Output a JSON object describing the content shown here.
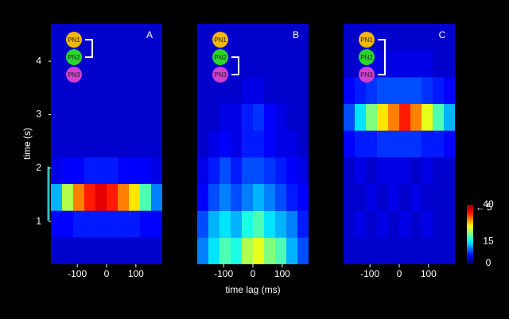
{
  "chart_data": [
    {
      "type": "heatmap",
      "label": "A",
      "nodes": [
        "PN1",
        "PN2",
        "PN3"
      ],
      "ylabel": "time (s)",
      "xlim": [
        -190,
        190
      ],
      "ylim": [
        0.2,
        4.7
      ],
      "xticks": [
        -100,
        0,
        100
      ],
      "yticks": [
        1,
        2,
        3,
        4
      ],
      "clim": [
        0,
        40
      ],
      "colorbar": {
        "ticks": [
          0,
          15,
          40
        ],
        "arrow_label": "5"
      },
      "x": [
        -171,
        -133,
        -95,
        -57,
        -19,
        19,
        57,
        95,
        133,
        171
      ],
      "y": [
        0.45,
        0.95,
        1.45,
        1.95,
        2.45,
        2.95,
        3.45,
        3.95,
        4.45
      ],
      "values": [
        [
          3,
          3,
          3,
          3,
          3,
          3,
          3,
          3,
          3,
          3
        ],
        [
          5,
          5,
          6,
          6,
          6,
          6,
          6,
          6,
          5,
          5
        ],
        [
          12,
          22,
          30,
          34,
          36,
          34,
          30,
          26,
          18,
          10
        ],
        [
          4,
          5,
          5,
          6,
          6,
          6,
          5,
          5,
          5,
          4
        ],
        [
          3,
          3,
          3,
          3,
          3,
          3,
          3,
          3,
          3,
          3
        ],
        [
          3,
          3,
          3,
          3,
          3,
          3,
          3,
          3,
          3,
          3
        ],
        [
          3,
          3,
          3,
          3,
          3,
          3,
          3,
          3,
          3,
          3
        ],
        [
          3,
          3,
          3,
          3,
          3,
          3,
          3,
          3,
          3,
          3
        ],
        [
          3,
          3,
          3,
          3,
          3,
          3,
          3,
          3,
          3,
          3
        ]
      ]
    },
    {
      "type": "heatmap",
      "label": "B",
      "nodes": [
        "PN1",
        "PN2",
        "PN3"
      ],
      "xlabel": "time lag (ms)",
      "xlim": [
        -190,
        190
      ],
      "ylim": [
        0.2,
        4.7
      ],
      "xticks": [
        -100,
        0,
        100
      ],
      "clim": [
        0,
        40
      ],
      "x": [
        -171,
        -133,
        -95,
        -57,
        -19,
        19,
        57,
        95,
        133,
        171
      ],
      "y": [
        0.45,
        0.95,
        1.45,
        1.95,
        2.45,
        2.95,
        3.45,
        3.95,
        4.45
      ],
      "values": [
        [
          10,
          14,
          18,
          16,
          22,
          24,
          20,
          18,
          12,
          8
        ],
        [
          8,
          12,
          14,
          12,
          16,
          18,
          14,
          12,
          10,
          6
        ],
        [
          5,
          8,
          10,
          8,
          10,
          12,
          10,
          8,
          6,
          5
        ],
        [
          4,
          6,
          8,
          6,
          8,
          8,
          7,
          6,
          5,
          4
        ],
        [
          3,
          4,
          5,
          4,
          6,
          6,
          5,
          4,
          4,
          3
        ],
        [
          3,
          3,
          4,
          4,
          6,
          7,
          5,
          4,
          3,
          3
        ],
        [
          3,
          3,
          3,
          3,
          4,
          4,
          3,
          3,
          3,
          3
        ],
        [
          3,
          3,
          3,
          3,
          3,
          3,
          3,
          3,
          3,
          3
        ],
        [
          3,
          3,
          3,
          3,
          3,
          3,
          3,
          3,
          3,
          3
        ]
      ]
    },
    {
      "type": "heatmap",
      "label": "C",
      "nodes": [
        "PN1",
        "PN2",
        "PN3"
      ],
      "xlim": [
        -190,
        190
      ],
      "ylim": [
        0.2,
        4.7
      ],
      "xticks": [
        -100,
        0,
        100
      ],
      "clim": [
        0,
        40
      ],
      "x": [
        -171,
        -133,
        -95,
        -57,
        -19,
        19,
        57,
        95,
        133,
        171
      ],
      "y": [
        0.45,
        0.95,
        1.45,
        1.95,
        2.45,
        2.95,
        3.45,
        3.95,
        4.45
      ],
      "values": [
        [
          3,
          3,
          3,
          3,
          3,
          3,
          3,
          3,
          3,
          3
        ],
        [
          3,
          4,
          3,
          4,
          3,
          4,
          3,
          4,
          3,
          3
        ],
        [
          3,
          3,
          4,
          3,
          4,
          3,
          4,
          3,
          3,
          3
        ],
        [
          3,
          4,
          3,
          4,
          4,
          4,
          3,
          4,
          3,
          3
        ],
        [
          5,
          6,
          6,
          7,
          7,
          7,
          7,
          6,
          6,
          5
        ],
        [
          8,
          14,
          20,
          26,
          30,
          34,
          30,
          24,
          18,
          12
        ],
        [
          5,
          6,
          7,
          8,
          8,
          8,
          8,
          7,
          6,
          5
        ],
        [
          3,
          3,
          4,
          4,
          4,
          4,
          4,
          4,
          3,
          3
        ],
        [
          3,
          3,
          3,
          3,
          3,
          3,
          3,
          3,
          3,
          3
        ]
      ]
    }
  ]
}
